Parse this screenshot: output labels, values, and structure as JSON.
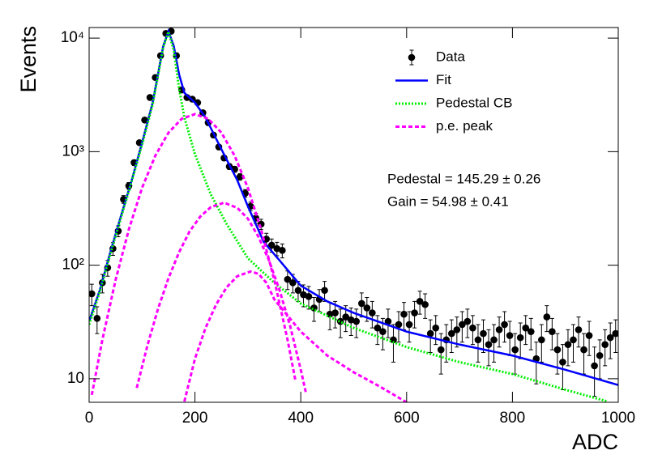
{
  "chart_data": {
    "type": "line",
    "xlabel": "ADC",
    "ylabel": "Events",
    "xlim": [
      0,
      1000
    ],
    "xticks": [
      0,
      200,
      400,
      600,
      800,
      1000
    ],
    "ylim": [
      6.2,
      12400
    ],
    "ylog": true,
    "yticks": [
      10,
      {
        "value": 100,
        "label": "10²"
      },
      {
        "value": 1000,
        "label": "10³"
      },
      {
        "value": 10000,
        "label": "10⁴"
      }
    ],
    "legend": "top right",
    "annotations": [
      "Pedestal = 145.29 ± 0.26",
      "Gain = 54.98 ± 0.41"
    ],
    "series": [
      {
        "name": "Data",
        "type": "errorbar",
        "color": "#000000",
        "x": [
          5,
          15,
          25,
          35,
          45,
          55,
          65,
          75,
          85,
          95,
          105,
          115,
          125,
          135,
          145,
          155,
          165,
          175,
          185,
          195,
          205,
          215,
          225,
          235,
          245,
          255,
          265,
          275,
          285,
          295,
          305,
          315,
          325,
          335,
          345,
          355,
          365,
          375,
          385,
          395,
          405,
          415,
          425,
          435,
          445,
          455,
          465,
          475,
          485,
          495,
          505,
          515,
          525,
          535,
          545,
          555,
          565,
          575,
          585,
          595,
          605,
          615,
          625,
          635,
          645,
          655,
          665,
          675,
          685,
          695,
          705,
          715,
          725,
          735,
          745,
          755,
          765,
          775,
          785,
          795,
          805,
          815,
          825,
          835,
          845,
          855,
          865,
          875,
          885,
          895,
          905,
          915,
          925,
          935,
          945,
          955,
          965,
          975,
          985,
          995
        ],
        "values": [
          56,
          34,
          70,
          95,
          140,
          200,
          380,
          500,
          800,
          1200,
          1900,
          3000,
          4500,
          7000,
          11000,
          11500,
          7000,
          3500,
          3000,
          2900,
          2700,
          2200,
          1800,
          1400,
          1100,
          880,
          740,
          700,
          600,
          430,
          330,
          260,
          230,
          170,
          150,
          140,
          135,
          75,
          70,
          60,
          55,
          53,
          42,
          50,
          60,
          37,
          38,
          32,
          35,
          33,
          32,
          46,
          42,
          38,
          28,
          26,
          32,
          22,
          30,
          37,
          30,
          38,
          48,
          45,
          25,
          28,
          18,
          22,
          25,
          27,
          30,
          32,
          28,
          22,
          25,
          20,
          22,
          27,
          30,
          24,
          18,
          23,
          28,
          26,
          15,
          22,
          35,
          26,
          18,
          14,
          20,
          22,
          27,
          18,
          24,
          13,
          16,
          20,
          23,
          25
        ],
        "errors": [
          12,
          9,
          13,
          15,
          18,
          22,
          30,
          35,
          45,
          55,
          70,
          88,
          105,
          130,
          165,
          170,
          130,
          95,
          88,
          86,
          83,
          75,
          68,
          60,
          53,
          47,
          43,
          42,
          39,
          33,
          29,
          26,
          24,
          21,
          20,
          19,
          19,
          14,
          13,
          12,
          12,
          12,
          10,
          11,
          12,
          10,
          10,
          9,
          9,
          9,
          9,
          11,
          10,
          10,
          8,
          8,
          9,
          8,
          9,
          10,
          9,
          10,
          11,
          11,
          8,
          8,
          7,
          8,
          8,
          8,
          9,
          9,
          8,
          8,
          8,
          7,
          8,
          8,
          9,
          8,
          7,
          8,
          8,
          8,
          6,
          8,
          9,
          8,
          7,
          6,
          7,
          8,
          8,
          7,
          8,
          6,
          6,
          7,
          8,
          8
        ]
      },
      {
        "name": "Fit",
        "type": "line",
        "color": "#0000ff",
        "dash": "solid",
        "x": [
          0,
          20,
          40,
          60,
          80,
          100,
          120,
          140,
          150,
          160,
          170,
          180,
          200,
          220,
          240,
          260,
          280,
          300,
          330,
          360,
          400,
          450,
          500,
          600,
          700,
          800,
          900,
          1000
        ],
        "values": [
          32,
          60,
          130,
          270,
          550,
          1200,
          2700,
          8500,
          11500,
          8500,
          4800,
          3300,
          2700,
          2000,
          1300,
          850,
          560,
          330,
          160,
          110,
          66,
          48,
          38,
          26,
          20,
          16,
          12,
          8.8
        ]
      },
      {
        "name": "Pedestal CB",
        "type": "line",
        "color": "#00ee00",
        "dash": "dotted",
        "x": [
          0,
          20,
          40,
          60,
          80,
          100,
          120,
          140,
          150,
          160,
          170,
          180,
          200,
          230,
          260,
          300,
          350,
          400,
          500,
          600,
          700,
          800,
          900,
          980
        ],
        "values": [
          30,
          58,
          125,
          260,
          540,
          1150,
          2600,
          8300,
          11400,
          7800,
          3600,
          2000,
          950,
          420,
          230,
          115,
          70,
          46,
          28,
          19,
          14,
          11,
          8,
          6.3
        ]
      },
      {
        "name": "p.e. peak",
        "type": "line",
        "color": "#ff00ff",
        "dash": "dashed",
        "x": [
          5,
          25,
          50,
          75,
          100,
          125,
          150,
          175,
          200,
          225,
          250,
          275,
          300,
          325,
          350,
          375,
          390
        ],
        "values": [
          7.2,
          22,
          74,
          206,
          480,
          920,
          1470,
          1950,
          2140,
          1950,
          1470,
          920,
          480,
          206,
          74,
          22,
          9.6
        ]
      },
      {
        "type": "line",
        "color": "#ff00ff",
        "dash": "dashed",
        "x": [
          90,
          110,
          130,
          150,
          170,
          190,
          210,
          230,
          255,
          280,
          300,
          320,
          340,
          360,
          380,
          400,
          410
        ],
        "values": [
          8.3,
          19.5,
          41,
          77,
          130,
          199,
          268,
          325,
          355,
          320,
          257,
          178,
          110,
          60,
          29,
          12,
          7.4
        ]
      },
      {
        "type": "line",
        "color": "#ff00ff",
        "dash": "dashed",
        "x": [
          180,
          200,
          220,
          240,
          260,
          280,
          305,
          320,
          335,
          350,
          375,
          400,
          450,
          500,
          550,
          600
        ],
        "values": [
          6.3,
          15,
          28,
          45,
          64,
          80,
          88,
          84,
          70,
          50,
          36,
          26,
          16,
          11.4,
          8.5,
          6.2
        ]
      }
    ]
  }
}
